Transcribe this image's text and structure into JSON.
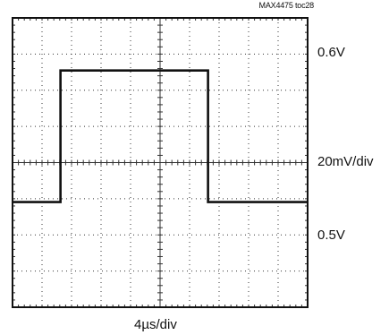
{
  "figure_code": "MAX4475 toc28",
  "chart_data": {
    "type": "line",
    "title": "",
    "xlabel": "4µs/div",
    "ylabel": "20mV/div",
    "grid": true,
    "x_unit": "µs",
    "y_unit": "V",
    "xlim": [
      0,
      40
    ],
    "ylim": [
      0.42,
      0.64
    ],
    "series": [
      {
        "x": [
          0,
          6.5,
          6.5,
          26.5,
          26.5,
          40
        ],
        "values": [
          0.5,
          0.5,
          0.6,
          0.6,
          0.5,
          0.5
        ]
      }
    ],
    "level_labels": {
      "top": "0.6V",
      "bottom": "0.5V"
    },
    "vertical_scale": "20mV/div",
    "horizontal_scale": "4µs/div"
  },
  "colors": {
    "trace": "#111111",
    "frame": "#111111",
    "grid": "#333333"
  }
}
